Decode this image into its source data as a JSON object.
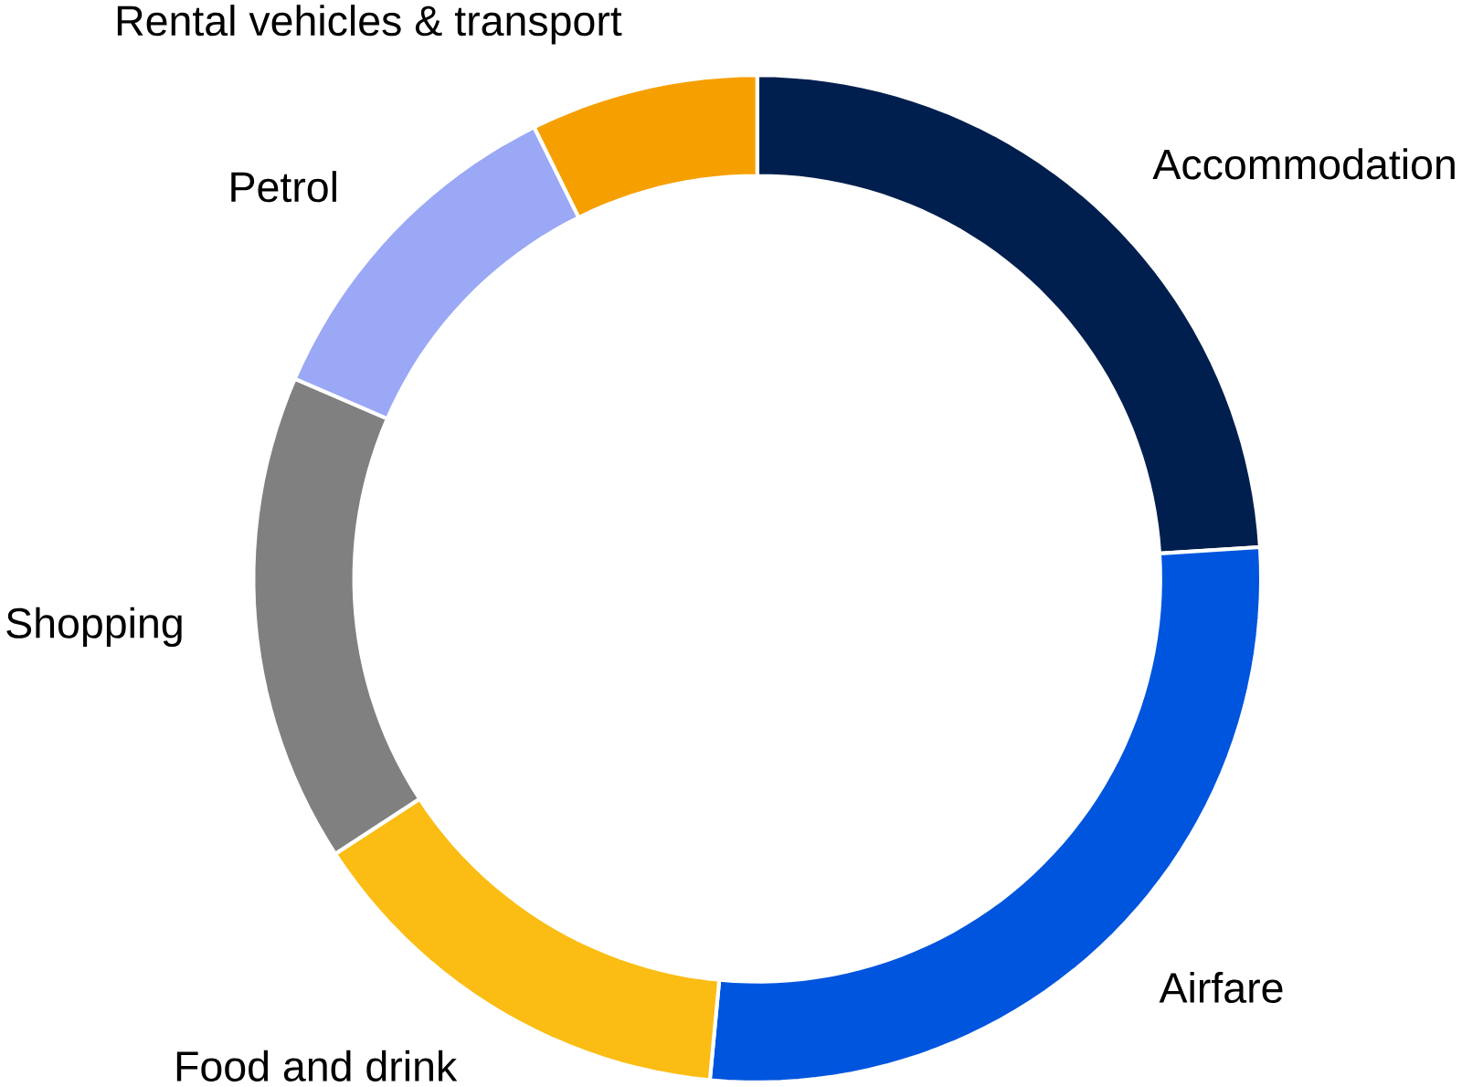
{
  "chart_data": {
    "type": "donut",
    "categories": [
      "Accommodation",
      "Airfare",
      "Food and drink",
      "Shopping",
      "Petrol",
      "Rental vehicles & transport"
    ],
    "values": [
      24,
      27.5,
      14.3,
      15.7,
      11.2,
      7.3
    ],
    "colors": [
      "#001f4e",
      "#0055de",
      "#fbbd14",
      "#808080",
      "#9aa8f5",
      "#f5a000"
    ]
  }
}
